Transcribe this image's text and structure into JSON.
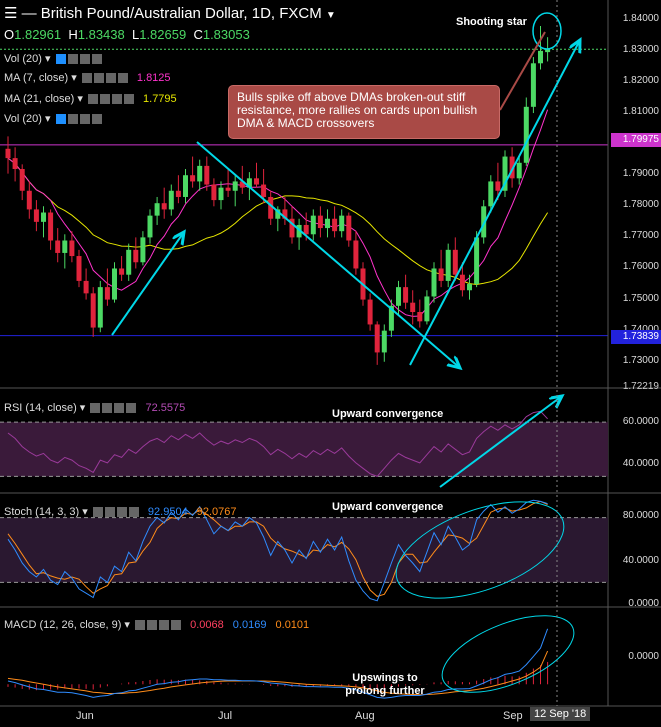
{
  "header": {
    "title": "British Pound/Australian Dollar, 1D, FXCM",
    "o_label": "O",
    "o": "1.82961",
    "h_label": "H",
    "h": "1.83438",
    "l_label": "L",
    "l": "1.82659",
    "c_label": "C",
    "c": "1.83053"
  },
  "indicators": {
    "vol1": "Vol (20)",
    "ma7": "MA (7, close)",
    "ma7_value": "1.8125",
    "ma21": "MA (21, close)",
    "ma21_value": "1.7795",
    "vol2": "Vol (20)"
  },
  "annotations": {
    "shooting_star": "Shooting star",
    "callout": "Bulls spike off above DMAs broken-out stiff resistance, more rallies on cards upon bullish DMA & MACD crossovers",
    "rsi_conv": "Upward convergence",
    "stoch_conv": "Upward convergence",
    "macd_up": "Upswings to prolong further"
  },
  "panels": {
    "rsi_label": "RSI (14, close)",
    "rsi_value": "72.5575",
    "stoch_label": "Stoch (14, 3, 3)",
    "stoch_k": "92.9504",
    "stoch_d": "92.0767",
    "macd_label": "MACD (12, 26, close, 9)",
    "macd_hist": "0.0068",
    "macd_line": "0.0169",
    "macd_signal": "0.0101"
  },
  "price_axis": {
    "ticks": [
      "1.84000",
      "1.83000",
      "1.82000",
      "1.81000",
      "1.80000",
      "1.79000",
      "1.78000",
      "1.77000",
      "1.76000",
      "1.75000",
      "1.74000",
      "1.73000"
    ],
    "resistance_label": "1.79975",
    "support_label": "1.73839",
    "bottom_label": "1.72219"
  },
  "rsi_axis": {
    "ticks": [
      "60.0000",
      "40.0000"
    ]
  },
  "stoch_axis": {
    "ticks": [
      "80.0000",
      "40.0000",
      "0.0000"
    ]
  },
  "macd_axis": {
    "ticks": [
      "0.0000"
    ]
  },
  "x_axis": {
    "labels": [
      "Jun",
      "Jul",
      "Aug",
      "Sep"
    ],
    "current_date": "12 Sep '18"
  },
  "colors": {
    "up": "#4cd964",
    "down": "#e0243c",
    "ma7": "#ff33cc",
    "ma21": "#e6e600",
    "trend": "#00d8e8",
    "resistance": "#cc33cc",
    "support": "#2222dd"
  },
  "chart_data": {
    "type": "candlestick",
    "resistance": 1.79975,
    "support": 1.73839,
    "ylim": [
      1.7222,
      1.8425
    ],
    "candles": [
      [
        1.7985,
        1.8025,
        1.7905,
        1.7955
      ],
      [
        1.7955,
        1.799,
        1.788,
        1.792
      ],
      [
        1.792,
        1.7935,
        1.782,
        1.785
      ],
      [
        1.785,
        1.788,
        1.776,
        1.779
      ],
      [
        1.779,
        1.782,
        1.772,
        1.775
      ],
      [
        1.775,
        1.78,
        1.77,
        1.778
      ],
      [
        1.778,
        1.779,
        1.766,
        1.769
      ],
      [
        1.769,
        1.773,
        1.762,
        1.765
      ],
      [
        1.765,
        1.771,
        1.76,
        1.769
      ],
      [
        1.769,
        1.772,
        1.762,
        1.764
      ],
      [
        1.764,
        1.766,
        1.754,
        1.756
      ],
      [
        1.756,
        1.76,
        1.75,
        1.752
      ],
      [
        1.752,
        1.754,
        1.738,
        1.741
      ],
      [
        1.741,
        1.756,
        1.7395,
        1.754
      ],
      [
        1.754,
        1.76,
        1.748,
        1.75
      ],
      [
        1.75,
        1.762,
        1.749,
        1.76
      ],
      [
        1.76,
        1.764,
        1.756,
        1.758
      ],
      [
        1.758,
        1.768,
        1.756,
        1.766
      ],
      [
        1.766,
        1.77,
        1.76,
        1.762
      ],
      [
        1.762,
        1.772,
        1.761,
        1.77
      ],
      [
        1.77,
        1.779,
        1.768,
        1.777
      ],
      [
        1.777,
        1.783,
        1.774,
        1.781
      ],
      [
        1.781,
        1.786,
        1.776,
        1.779
      ],
      [
        1.779,
        1.787,
        1.777,
        1.785
      ],
      [
        1.785,
        1.79,
        1.781,
        1.783
      ],
      [
        1.783,
        1.792,
        1.781,
        1.79
      ],
      [
        1.79,
        1.796,
        1.786,
        1.788
      ],
      [
        1.788,
        1.795,
        1.785,
        1.793
      ],
      [
        1.793,
        1.796,
        1.785,
        1.787
      ],
      [
        1.787,
        1.789,
        1.78,
        1.782
      ],
      [
        1.782,
        1.788,
        1.779,
        1.786
      ],
      [
        1.786,
        1.792,
        1.783,
        1.785
      ],
      [
        1.785,
        1.79,
        1.78,
        1.788
      ],
      [
        1.788,
        1.793,
        1.784,
        1.786
      ],
      [
        1.786,
        1.791,
        1.782,
        1.789
      ],
      [
        1.789,
        1.794,
        1.786,
        1.787
      ],
      [
        1.787,
        1.792,
        1.781,
        1.783
      ],
      [
        1.783,
        1.785,
        1.774,
        1.776
      ],
      [
        1.776,
        1.78,
        1.772,
        1.779
      ],
      [
        1.779,
        1.783,
        1.774,
        1.776
      ],
      [
        1.776,
        1.78,
        1.768,
        1.77
      ],
      [
        1.77,
        1.776,
        1.766,
        1.774
      ],
      [
        1.774,
        1.778,
        1.769,
        1.771
      ],
      [
        1.771,
        1.779,
        1.769,
        1.777
      ],
      [
        1.777,
        1.78,
        1.77,
        1.773
      ],
      [
        1.773,
        1.779,
        1.77,
        1.776
      ],
      [
        1.776,
        1.78,
        1.77,
        1.772
      ],
      [
        1.772,
        1.779,
        1.77,
        1.777
      ],
      [
        1.777,
        1.778,
        1.767,
        1.769
      ],
      [
        1.769,
        1.772,
        1.758,
        1.76
      ],
      [
        1.76,
        1.762,
        1.748,
        1.75
      ],
      [
        1.75,
        1.752,
        1.74,
        1.742
      ],
      [
        1.742,
        1.743,
        1.729,
        1.733
      ],
      [
        1.733,
        1.742,
        1.73,
        1.74
      ],
      [
        1.74,
        1.75,
        1.738,
        1.748
      ],
      [
        1.748,
        1.756,
        1.745,
        1.754
      ],
      [
        1.754,
        1.758,
        1.747,
        1.749
      ],
      [
        1.749,
        1.753,
        1.742,
        1.746
      ],
      [
        1.746,
        1.75,
        1.741,
        1.743
      ],
      [
        1.743,
        1.753,
        1.742,
        1.751
      ],
      [
        1.751,
        1.762,
        1.749,
        1.76
      ],
      [
        1.76,
        1.766,
        1.754,
        1.756
      ],
      [
        1.756,
        1.768,
        1.754,
        1.766
      ],
      [
        1.766,
        1.77,
        1.756,
        1.758
      ],
      [
        1.758,
        1.762,
        1.751,
        1.753
      ],
      [
        1.753,
        1.758,
        1.75,
        1.755
      ],
      [
        1.755,
        1.772,
        1.754,
        1.77
      ],
      [
        1.77,
        1.782,
        1.768,
        1.78
      ],
      [
        1.78,
        1.79,
        1.778,
        1.788
      ],
      [
        1.788,
        1.794,
        1.782,
        1.785
      ],
      [
        1.785,
        1.798,
        1.783,
        1.796
      ],
      [
        1.796,
        1.799,
        1.786,
        1.789
      ],
      [
        1.789,
        1.796,
        1.787,
        1.794
      ],
      [
        1.794,
        1.815,
        1.793,
        1.812
      ],
      [
        1.812,
        1.828,
        1.81,
        1.826
      ],
      [
        1.826,
        1.838,
        1.824,
        1.83
      ],
      [
        1.8296,
        1.8344,
        1.8266,
        1.8305
      ]
    ],
    "rsi": [
      62,
      58,
      52,
      48,
      45,
      47,
      42,
      40,
      44,
      42,
      38,
      36,
      33,
      42,
      40,
      46,
      44,
      50,
      47,
      52,
      56,
      58,
      55,
      60,
      57,
      61,
      58,
      62,
      57,
      53,
      56,
      54,
      57,
      55,
      58,
      56,
      52,
      46,
      50,
      47,
      43,
      47,
      44,
      49,
      46,
      50,
      47,
      51,
      45,
      40,
      36,
      32,
      30,
      36,
      42,
      47,
      44,
      42,
      40,
      46,
      52,
      48,
      54,
      50,
      46,
      48,
      58,
      63,
      67,
      64,
      68,
      65,
      68,
      74,
      77,
      78,
      72.5
    ],
    "stoch_k": [
      60,
      50,
      38,
      30,
      25,
      32,
      22,
      18,
      30,
      24,
      14,
      10,
      6,
      25,
      20,
      35,
      30,
      48,
      40,
      58,
      72,
      80,
      75,
      85,
      78,
      88,
      82,
      90,
      78,
      65,
      72,
      68,
      76,
      72,
      80,
      75,
      62,
      45,
      58,
      50,
      38,
      50,
      42,
      58,
      48,
      60,
      50,
      62,
      40,
      22,
      12,
      5,
      3,
      20,
      38,
      55,
      45,
      38,
      30,
      48,
      66,
      55,
      72,
      62,
      50,
      55,
      78,
      86,
      92,
      85,
      90,
      84,
      88,
      94,
      96,
      95,
      92.95
    ],
    "stoch_d": [
      65,
      56,
      46,
      36,
      28,
      29,
      26,
      24,
      23,
      25,
      23,
      16,
      10,
      14,
      17,
      27,
      28,
      38,
      39,
      49,
      57,
      70,
      76,
      80,
      79,
      84,
      83,
      87,
      83,
      78,
      72,
      68,
      72,
      72,
      76,
      76,
      72,
      61,
      55,
      51,
      49,
      46,
      43,
      50,
      49,
      55,
      53,
      57,
      51,
      41,
      25,
      13,
      7,
      9,
      20,
      38,
      46,
      46,
      38,
      39,
      48,
      56,
      64,
      63,
      61,
      56,
      61,
      73,
      85,
      88,
      89,
      86,
      87,
      89,
      93,
      95,
      92.08
    ],
    "macd_line": [
      0.001,
      0.0005,
      -0.0002,
      -0.0008,
      -0.0014,
      -0.0016,
      -0.002,
      -0.0024,
      -0.0024,
      -0.0026,
      -0.003,
      -0.0034,
      -0.004,
      -0.0036,
      -0.0034,
      -0.0028,
      -0.0026,
      -0.002,
      -0.0018,
      -0.0012,
      -0.0006,
      0.0,
      0.0002,
      0.0006,
      0.0008,
      0.0012,
      0.0014,
      0.0016,
      0.0016,
      0.0014,
      0.0014,
      0.0012,
      0.0012,
      0.0011,
      0.0011,
      0.001,
      0.0008,
      0.0004,
      0.0002,
      0.0,
      -0.0004,
      -0.0005,
      -0.0007,
      -0.0007,
      -0.0008,
      -0.0008,
      -0.0009,
      -0.0009,
      -0.0012,
      -0.0017,
      -0.0024,
      -0.0032,
      -0.004,
      -0.0042,
      -0.004,
      -0.0036,
      -0.0034,
      -0.0034,
      -0.0034,
      -0.003,
      -0.0024,
      -0.0022,
      -0.0016,
      -0.0014,
      -0.0014,
      -0.0013,
      -0.0005,
      0.0004,
      0.0014,
      0.002,
      0.003,
      0.0034,
      0.004,
      0.006,
      0.0085,
      0.011,
      0.0169
    ],
    "macd_signal": [
      0.0018,
      0.0015,
      0.0012,
      0.0008,
      0.0004,
      0.0,
      -0.0004,
      -0.0008,
      -0.0011,
      -0.0014,
      -0.0017,
      -0.002,
      -0.0024,
      -0.0026,
      -0.0028,
      -0.0028,
      -0.0028,
      -0.0026,
      -0.0025,
      -0.0022,
      -0.0019,
      -0.0015,
      -0.0012,
      -0.0008,
      -0.0005,
      -0.0002,
      0.0001,
      0.0004,
      0.0006,
      0.0008,
      0.0009,
      0.001,
      0.001,
      0.001,
      0.001,
      0.001,
      0.001,
      0.0009,
      0.0008,
      0.0006,
      0.0004,
      0.0002,
      0.0,
      -0.0001,
      -0.0002,
      -0.0003,
      -0.0004,
      -0.0005,
      -0.0006,
      -0.0008,
      -0.0011,
      -0.0015,
      -0.002,
      -0.0024,
      -0.0027,
      -0.0029,
      -0.003,
      -0.0031,
      -0.0032,
      -0.0031,
      -0.003,
      -0.0028,
      -0.0026,
      -0.0023,
      -0.0021,
      -0.0019,
      -0.0016,
      -0.0012,
      -0.0007,
      -0.0002,
      0.0004,
      0.001,
      0.0016,
      0.0025,
      0.0037,
      0.0052,
      0.0101
    ],
    "macd_hist": [
      -0.0008,
      -0.001,
      -0.0014,
      -0.0016,
      -0.0018,
      -0.0016,
      -0.0016,
      -0.0016,
      -0.0013,
      -0.0012,
      -0.0013,
      -0.0014,
      -0.0016,
      -0.001,
      -0.0006,
      0.0,
      0.0002,
      0.0006,
      0.0007,
      0.001,
      0.0013,
      0.0015,
      0.0014,
      0.0014,
      0.0013,
      0.0014,
      0.0013,
      0.0012,
      0.001,
      0.0006,
      0.0005,
      0.0002,
      0.0002,
      0.0001,
      0.0001,
      0.0,
      -0.0002,
      -0.0005,
      -0.0006,
      -0.0006,
      -0.0008,
      -0.0007,
      -0.0007,
      -0.0006,
      -0.0006,
      -0.0005,
      -0.0005,
      -0.0004,
      -0.0006,
      -0.0009,
      -0.0013,
      -0.0017,
      -0.002,
      -0.0018,
      -0.0013,
      -0.0007,
      -0.0004,
      -0.0003,
      -0.0002,
      0.0001,
      0.0006,
      0.0006,
      0.001,
      0.0009,
      0.0007,
      0.0006,
      0.0011,
      0.0016,
      0.0021,
      0.0022,
      0.0026,
      0.0024,
      0.0024,
      0.0035,
      0.0048,
      0.0058,
      0.0068
    ]
  }
}
